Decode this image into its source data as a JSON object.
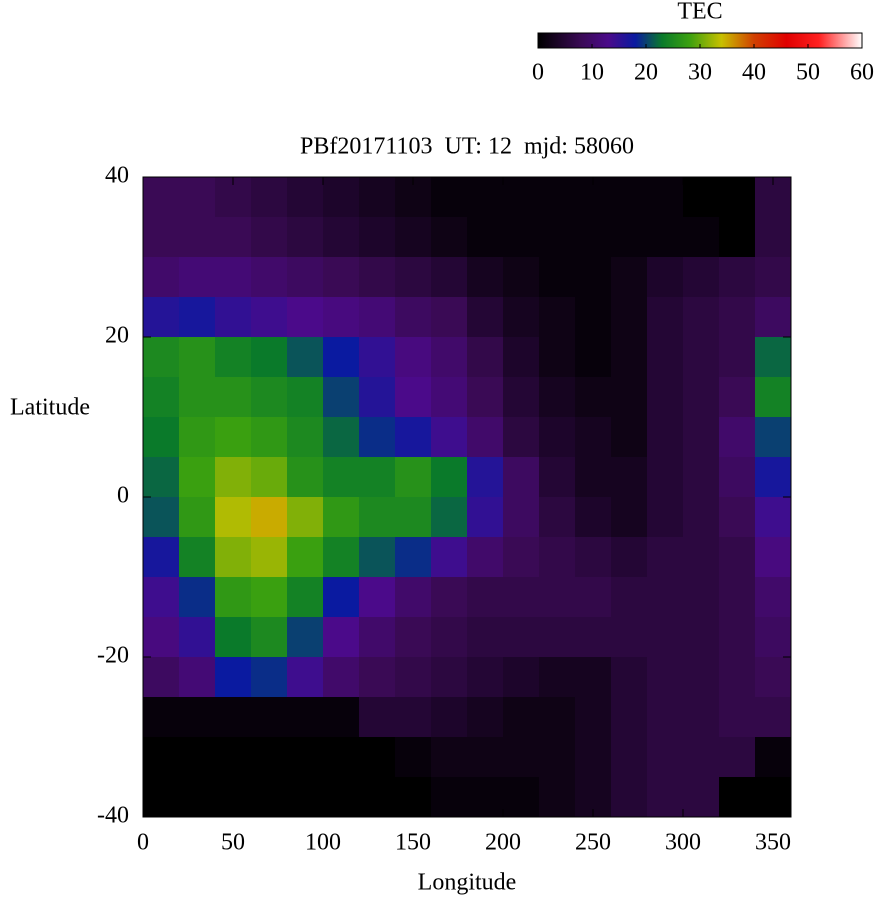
{
  "chart_data": {
    "type": "heatmap",
    "title": "PBf20171103  UT: 12  mjd: 58060",
    "x_label": "Longitude",
    "y_label": "Latitude",
    "colorbar_label": "TEC",
    "x": [
      10,
      30,
      50,
      70,
      90,
      110,
      130,
      150,
      170,
      190,
      210,
      230,
      250,
      270,
      290,
      310,
      330,
      350
    ],
    "y": [
      37.5,
      32.5,
      27.5,
      22.5,
      17.5,
      12.5,
      7.5,
      2.5,
      -2.5,
      -7.5,
      -12.5,
      -17.5,
      -22.5,
      -27.5,
      -32.5,
      -37.5
    ],
    "z": [
      [
        8,
        8,
        7,
        6,
        5,
        4,
        3,
        2,
        1,
        1,
        1,
        1,
        1,
        1,
        1,
        0,
        0,
        6
      ],
      [
        8,
        8,
        8,
        7,
        6,
        5,
        4,
        3,
        2,
        1,
        1,
        1,
        1,
        1,
        1,
        1,
        0,
        6
      ],
      [
        10,
        11,
        11,
        10,
        9,
        8,
        7,
        6,
        5,
        3,
        2,
        1,
        1,
        2,
        4,
        5,
        6,
        7
      ],
      [
        16,
        17,
        15,
        14,
        13,
        12,
        11,
        9,
        8,
        5,
        3,
        2,
        1,
        2,
        5,
        6,
        7,
        9
      ],
      [
        25,
        26,
        24,
        23,
        21,
        18,
        15,
        12,
        10,
        7,
        4,
        2,
        1,
        2,
        5,
        6,
        7,
        22
      ],
      [
        24,
        26,
        26,
        25,
        24,
        20,
        16,
        13,
        11,
        8,
        5,
        3,
        2,
        2,
        5,
        6,
        8,
        24
      ],
      [
        23,
        27,
        28,
        27,
        25,
        22,
        19,
        17,
        14,
        10,
        6,
        4,
        3,
        2,
        5,
        6,
        10,
        20
      ],
      [
        22,
        28,
        31,
        30,
        26,
        24,
        24,
        26,
        23,
        16,
        9,
        5,
        3,
        3,
        5,
        6,
        9,
        17
      ],
      [
        21,
        27,
        33,
        35,
        31,
        27,
        25,
        25,
        22,
        15,
        9,
        6,
        4,
        3,
        5,
        6,
        8,
        14
      ],
      [
        17,
        24,
        31,
        32,
        28,
        24,
        21,
        19,
        14,
        10,
        8,
        7,
        6,
        5,
        6,
        6,
        7,
        12
      ],
      [
        14,
        19,
        27,
        28,
        24,
        18,
        13,
        10,
        8,
        7,
        7,
        7,
        7,
        6,
        6,
        6,
        7,
        10
      ],
      [
        12,
        15,
        23,
        25,
        20,
        13,
        10,
        8,
        7,
        6,
        6,
        6,
        6,
        6,
        6,
        6,
        7,
        9
      ],
      [
        9,
        11,
        18,
        19,
        14,
        10,
        8,
        7,
        6,
        5,
        4,
        3,
        3,
        5,
        6,
        6,
        7,
        8
      ],
      [
        1,
        1,
        1,
        1,
        1,
        1,
        5,
        5,
        4,
        3,
        2,
        2,
        3,
        5,
        6,
        6,
        7,
        7
      ],
      [
        0,
        0,
        0,
        0,
        0,
        0,
        0,
        1,
        2,
        2,
        2,
        2,
        3,
        5,
        6,
        6,
        6,
        1
      ],
      [
        0,
        0,
        0,
        0,
        0,
        0,
        0,
        0,
        1,
        1,
        1,
        2,
        3,
        5,
        6,
        6,
        0,
        0
      ]
    ],
    "xlim": [
      0,
      360
    ],
    "xticks": [
      0,
      50,
      100,
      150,
      200,
      250,
      300,
      350
    ],
    "ylim": [
      -40,
      40
    ],
    "yticks": [
      -40,
      -20,
      0,
      20,
      40
    ],
    "clim": [
      0,
      60
    ],
    "cticks": [
      0,
      10,
      20,
      30,
      40,
      50,
      60
    ],
    "colormap": [
      {
        "value": 0,
        "color": "#000000"
      },
      {
        "value": 8,
        "color": "#3a0a55"
      },
      {
        "value": 13,
        "color": "#4b0a8a"
      },
      {
        "value": 18,
        "color": "#0a1aa0"
      },
      {
        "value": 23,
        "color": "#0a7a2a"
      },
      {
        "value": 28,
        "color": "#3aa010"
      },
      {
        "value": 34,
        "color": "#c8c000"
      },
      {
        "value": 40,
        "color": "#d04000"
      },
      {
        "value": 46,
        "color": "#e00000"
      },
      {
        "value": 52,
        "color": "#ff2020"
      },
      {
        "value": 60,
        "color": "#ffffff"
      }
    ]
  }
}
